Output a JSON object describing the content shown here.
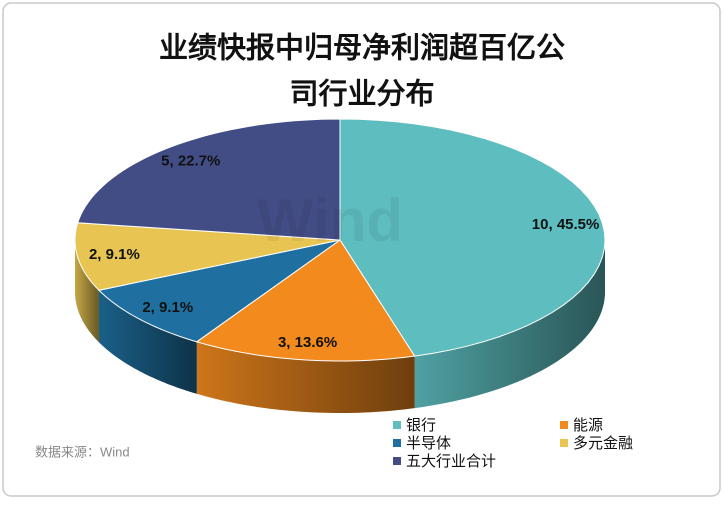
{
  "chart_data": {
    "type": "pie3d",
    "title_lines": [
      "业绩快报中归母净利润超百亿公",
      "司行业分布"
    ],
    "source": "数据来源：Wind",
    "watermark": "Wind",
    "categories": [
      "银行",
      "能源",
      "半导体",
      "多元金融",
      "五大行业合计"
    ],
    "values": [
      10,
      3,
      2,
      2,
      5
    ],
    "value_labels": [
      "10, 45.5%",
      "3, 13.6%",
      "2, 9.1%",
      "2, 9.1%",
      "5, 22.7%"
    ],
    "colors": [
      "#5dbdbf",
      "#f28a1e",
      "#1f70a0",
      "#e8c552",
      "#424d85"
    ]
  }
}
